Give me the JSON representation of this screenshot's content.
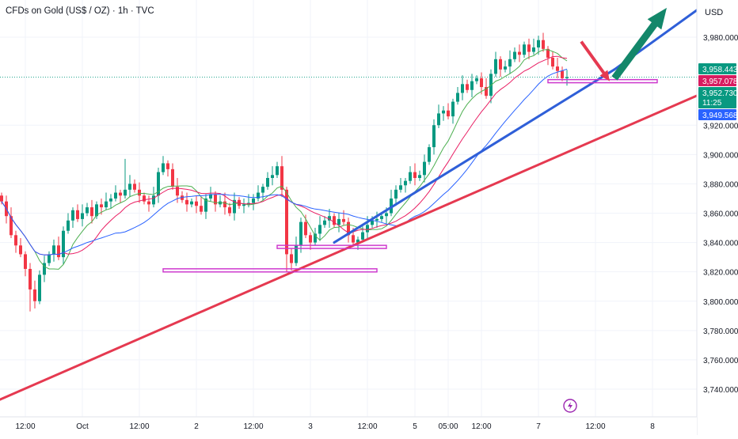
{
  "header": {
    "title": "CFDs on Gold (US$ / OZ) · 1h · TVC",
    "currency": "USD"
  },
  "chart_data": {
    "type": "candlestick",
    "title": "CFDs on Gold (US$ / OZ) · 1h · TVC",
    "currency": "USD",
    "ylim": [
      3730,
      4010
    ],
    "y_ticks": [
      {
        "value": 3740,
        "label": "3,740.000"
      },
      {
        "value": 3760,
        "label": "3,760.000"
      },
      {
        "value": 3780,
        "label": "3,780.000"
      },
      {
        "value": 3800,
        "label": "3,800.000"
      },
      {
        "value": 3820,
        "label": "3,820.000"
      },
      {
        "value": 3840,
        "label": "3,840.000"
      },
      {
        "value": 3860,
        "label": "3,860.000"
      },
      {
        "value": 3880,
        "label": "3,880.000"
      },
      {
        "value": 3900,
        "label": "3,900.000"
      },
      {
        "value": 3920,
        "label": "3,920.000"
      },
      {
        "value": 3980,
        "label": "3,980.000"
      }
    ],
    "x_ticks": [
      {
        "idx": 5,
        "label": "12:00"
      },
      {
        "idx": 17,
        "label": "Oct"
      },
      {
        "idx": 29,
        "label": "12:00"
      },
      {
        "idx": 41,
        "label": "2"
      },
      {
        "idx": 53,
        "label": "12:00"
      },
      {
        "idx": 65,
        "label": "3"
      },
      {
        "idx": 77,
        "label": "12:00"
      },
      {
        "idx": 87,
        "label": "5"
      },
      {
        "idx": 94,
        "label": "05:00"
      },
      {
        "idx": 101,
        "label": "12:00"
      },
      {
        "idx": 113,
        "label": "7"
      },
      {
        "idx": 125,
        "label": "12:00"
      },
      {
        "idx": 137,
        "label": "8"
      }
    ],
    "price_labels": [
      {
        "label": "3,958.443",
        "value": 3958.443,
        "color": "#089981"
      },
      {
        "label": "3,957.078",
        "value": 3957.078,
        "color": "#d81b60"
      },
      {
        "label": "3,952.730",
        "value": 3952.73,
        "sub": "11:25",
        "color": "#089981"
      },
      {
        "label": "3,949.568",
        "value": 3949.568,
        "color": "#2962ff"
      }
    ],
    "candles_close": [
      3868,
      3858,
      3845,
      3838,
      3832,
      3822,
      3808,
      3800,
      3818,
      3826,
      3832,
      3838,
      3830,
      3848,
      3855,
      3862,
      3856,
      3860,
      3864,
      3858,
      3866,
      3864,
      3868,
      3870,
      3874,
      3872,
      3876,
      3880,
      3876,
      3872,
      3868,
      3866,
      3872,
      3888,
      3894,
      3890,
      3878,
      3872,
      3869,
      3866,
      3868,
      3865,
      3861,
      3870,
      3873,
      3866,
      3868,
      3864,
      3860,
      3869,
      3865,
      3866,
      3867,
      3870,
      3874,
      3878,
      3884,
      3886,
      3892,
      3876,
      3832,
      3826,
      3838,
      3854,
      3845,
      3840,
      3846,
      3852,
      3855,
      3858,
      3852,
      3856,
      3854,
      3845,
      3840,
      3842,
      3847,
      3852,
      3855,
      3856,
      3858,
      3860,
      3870,
      3876,
      3879,
      3882,
      3888,
      3884,
      3886,
      3895,
      3905,
      3920,
      3928,
      3930,
      3926,
      3936,
      3942,
      3948,
      3944,
      3950,
      3952,
      3946,
      3940,
      3955,
      3965,
      3958,
      3960,
      3965,
      3970,
      3968,
      3975,
      3970,
      3973,
      3978,
      3972,
      3966,
      3960,
      3957,
      3952,
      3952.73
    ],
    "moving_averages": [
      {
        "color": "#4caf50",
        "period": 8
      },
      {
        "color": "#e91e63",
        "period": 14
      },
      {
        "color": "#2962ff",
        "period": 25
      }
    ],
    "trendlines": [
      {
        "color": "#e53950",
        "x1": -1,
        "y1": 3732,
        "x2": 159,
        "y2": 3958
      },
      {
        "color": "#2f5fd8",
        "x1": 70,
        "y1": 3840,
        "x2": 129,
        "y2": 3958
      },
      {
        "color": "#2f5fd8",
        "x1": 129,
        "y1": 3958,
        "x2": 150,
        "y2": 4007
      }
    ],
    "zones": [
      {
        "color": "#cc33cc",
        "x1": 34,
        "x2": 79,
        "y": 3821
      },
      {
        "color": "#cc33cc",
        "x1": 58,
        "x2": 81,
        "y": 3837
      },
      {
        "color": "#cc33cc",
        "x1": 115,
        "x2": 138,
        "y": 3950
      }
    ],
    "arrows": [
      {
        "color": "#e53950",
        "x1": 122,
        "y1": 3977,
        "x2": 128,
        "y2": 3950
      },
      {
        "color": "#13876a",
        "x1": 129,
        "y1": 3952,
        "x2": 140,
        "y2": 4000
      }
    ]
  }
}
